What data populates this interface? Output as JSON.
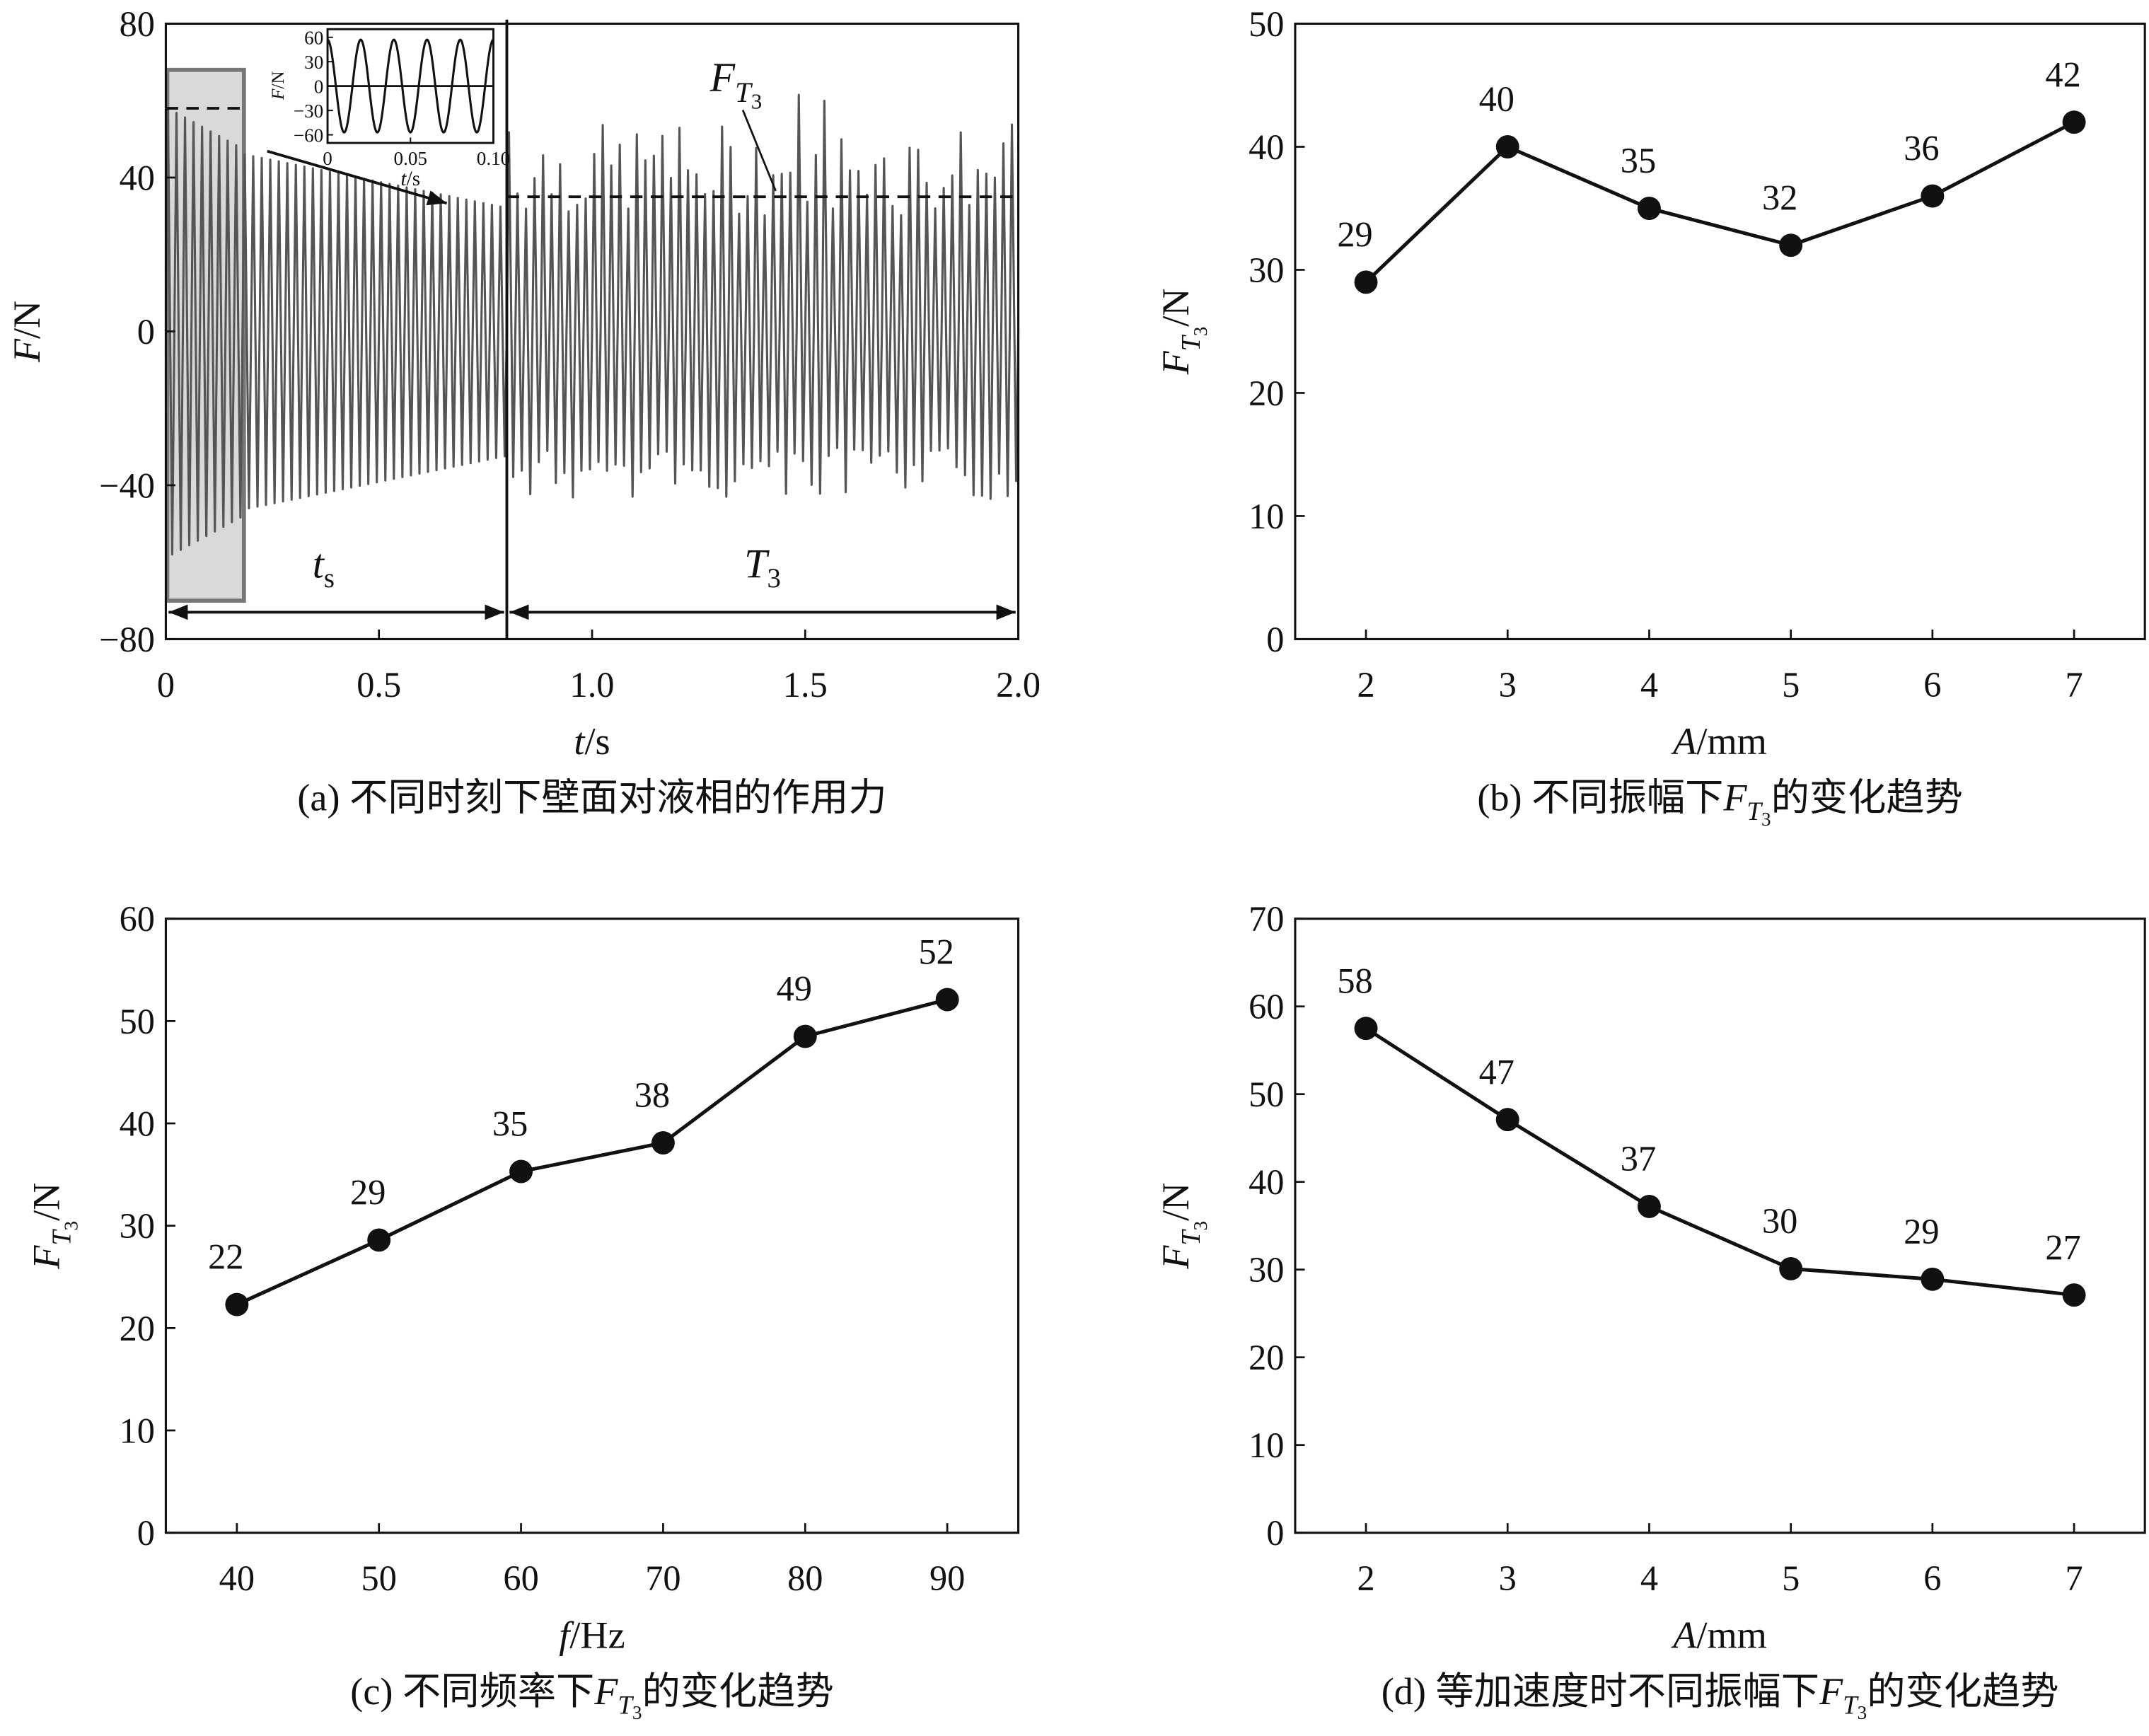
{
  "chart_data": [
    {
      "id": "a",
      "type": "line",
      "caption_prefix": "(a) 不同时刻下壁面对液相的作用力",
      "xlabel_var": "t",
      "xlabel_unit": "/s",
      "ylabel_var": "F",
      "ylabel_unit": "/N",
      "xlim": [
        0,
        2.0
      ],
      "ylim": [
        -80,
        80
      ],
      "xticks": [
        "0",
        "0.5",
        "1.0",
        "1.5",
        "2.0"
      ],
      "xtick_values": [
        0,
        0.5,
        1.0,
        1.5,
        2.0
      ],
      "yticks": [
        "80",
        "40",
        "0",
        "−40",
        "−80"
      ],
      "ytick_values": [
        80,
        40,
        0,
        -40,
        -80
      ],
      "signal": {
        "frequency_hz": 50,
        "initial_peak": 58,
        "transition_time": 0.8,
        "steady_amplitude": 35,
        "highlight_window": [
          0,
          0.18
        ]
      },
      "annotations": {
        "ts_label": "t",
        "ts_sub": "s",
        "T3_label": "T",
        "T3_sub": "3",
        "FT3_label": "F",
        "FT3_sub": "T",
        "FT3_subsub": "3",
        "initial_level": 58,
        "FT3_level": 35
      },
      "inset": {
        "xlim": [
          0,
          0.1
        ],
        "ylim": [
          -70,
          70
        ],
        "xticks": [
          "0",
          "0.05",
          "0.10"
        ],
        "xtick_values": [
          0,
          0.05,
          0.1
        ],
        "yticks": [
          "60",
          "30",
          "0",
          "−30",
          "−60"
        ],
        "ytick_values": [
          60,
          30,
          0,
          -30,
          -60
        ],
        "xlabel_var": "t",
        "xlabel_unit": "/s",
        "ylabel_var": "F",
        "ylabel_unit": "/N",
        "amplitude": 57,
        "frequency_hz": 50
      }
    },
    {
      "id": "b",
      "type": "line",
      "caption_prefix": "(b) 不同振幅下",
      "caption_suffix": "的变化趋势",
      "xlabel_var": "A",
      "xlabel_unit": "/mm",
      "ylabel_unit": "/N",
      "x": [
        2,
        3,
        4,
        5,
        6,
        7
      ],
      "values": [
        29,
        40,
        35,
        32,
        36,
        42
      ],
      "labels": [
        "29",
        "40",
        "35",
        "32",
        "36",
        "42"
      ],
      "xlim": [
        1.5,
        7.5
      ],
      "ylim": [
        0,
        50
      ],
      "xticks": [
        "2",
        "3",
        "4",
        "5",
        "6",
        "7"
      ],
      "yticks": [
        "0",
        "10",
        "20",
        "30",
        "40",
        "50"
      ],
      "ytick_values": [
        0,
        10,
        20,
        30,
        40,
        50
      ]
    },
    {
      "id": "c",
      "type": "line",
      "caption_prefix": "(c) 不同频率下",
      "caption_suffix": "的变化趋势",
      "xlabel_var": "f",
      "xlabel_unit": "/Hz",
      "ylabel_unit": "/N",
      "x": [
        40,
        50,
        60,
        70,
        80,
        90
      ],
      "values": [
        22.3,
        28.6,
        35.3,
        38.1,
        48.5,
        52.1
      ],
      "labels": [
        "22",
        "29",
        "35",
        "38",
        "49",
        "52"
      ],
      "xlim": [
        35,
        95
      ],
      "ylim": [
        0,
        60
      ],
      "xticks": [
        "40",
        "50",
        "60",
        "70",
        "80",
        "90"
      ],
      "yticks": [
        "0",
        "10",
        "20",
        "30",
        "40",
        "50",
        "60"
      ],
      "ytick_values": [
        0,
        10,
        20,
        30,
        40,
        50,
        60
      ]
    },
    {
      "id": "d",
      "type": "line",
      "caption_prefix": "(d) 等加速度时不同振幅下",
      "caption_suffix": "的变化趋势",
      "xlabel_var": "A",
      "xlabel_unit": "/mm",
      "ylabel_unit": "/N",
      "x": [
        2,
        3,
        4,
        5,
        6,
        7
      ],
      "values": [
        57.5,
        47.1,
        37.2,
        30.1,
        28.9,
        27.1
      ],
      "labels": [
        "58",
        "47",
        "37",
        "30",
        "29",
        "27"
      ],
      "xlim": [
        1.5,
        7.5
      ],
      "ylim": [
        0,
        70
      ],
      "xticks": [
        "2",
        "3",
        "4",
        "5",
        "6",
        "7"
      ],
      "yticks": [
        "0",
        "10",
        "20",
        "30",
        "40",
        "50",
        "60",
        "70"
      ],
      "ytick_values": [
        0,
        10,
        20,
        30,
        40,
        50,
        60,
        70
      ]
    }
  ],
  "symbol": {
    "F": "F",
    "T": "T",
    "three": "3"
  },
  "colors": {
    "line": "#111111",
    "signal": "#555555",
    "highlight_fill": "#d9d9d9",
    "highlight_stroke": "#777777"
  }
}
